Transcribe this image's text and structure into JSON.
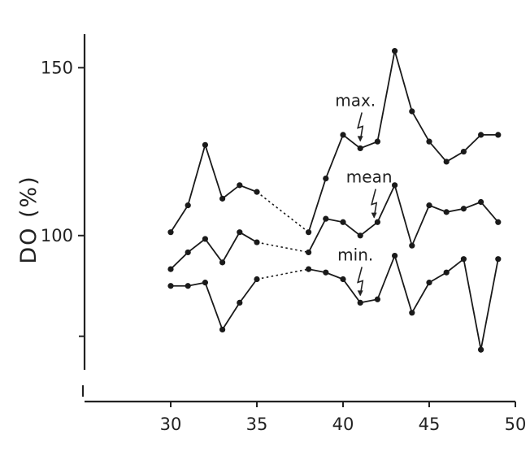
{
  "chart_data": {
    "type": "line",
    "title": "",
    "xlabel": "",
    "ylabel": "DO (%)",
    "xlim": [
      25,
      50
    ],
    "ylim": [
      60,
      160
    ],
    "x_ticks": [
      30,
      35,
      40,
      45,
      50
    ],
    "y_ticks": [
      100,
      150
    ],
    "y_minor_ticks": [
      70
    ],
    "grid": false,
    "legend": "none",
    "series": [
      {
        "name": "max.",
        "x": [
          30,
          31,
          32,
          33,
          34,
          35,
          38,
          39,
          40,
          41,
          42,
          43,
          44,
          45,
          46,
          47,
          48,
          49
        ],
        "values": [
          101,
          109,
          127,
          111,
          115,
          113,
          101,
          117,
          130,
          126,
          128,
          155,
          137,
          128,
          122,
          125,
          130,
          130
        ]
      },
      {
        "name": "mean",
        "x": [
          30,
          31,
          32,
          33,
          34,
          35,
          38,
          39,
          40,
          41,
          42,
          43,
          44,
          45,
          46,
          47,
          48,
          49
        ],
        "values": [
          90,
          95,
          99,
          92,
          101,
          98,
          95,
          105,
          104,
          100,
          104,
          115,
          97,
          109,
          107,
          108,
          110,
          104
        ]
      },
      {
        "name": "min.",
        "x": [
          30,
          31,
          32,
          33,
          34,
          35,
          38,
          39,
          40,
          41,
          42,
          43,
          44,
          45,
          46,
          47,
          48,
          49
        ],
        "values": [
          85,
          85,
          86,
          72,
          80,
          87,
          90,
          89,
          87,
          80,
          81,
          94,
          77,
          86,
          89,
          93,
          66,
          93
        ]
      }
    ],
    "dashed_gap": [
      35,
      38
    ],
    "annotations": [
      {
        "text": "max.",
        "series": "max.",
        "at_x": 41
      },
      {
        "text": "mean",
        "series": "mean",
        "at_x": 41.8
      },
      {
        "text": "min.",
        "series": "min.",
        "at_x": 41
      }
    ]
  }
}
